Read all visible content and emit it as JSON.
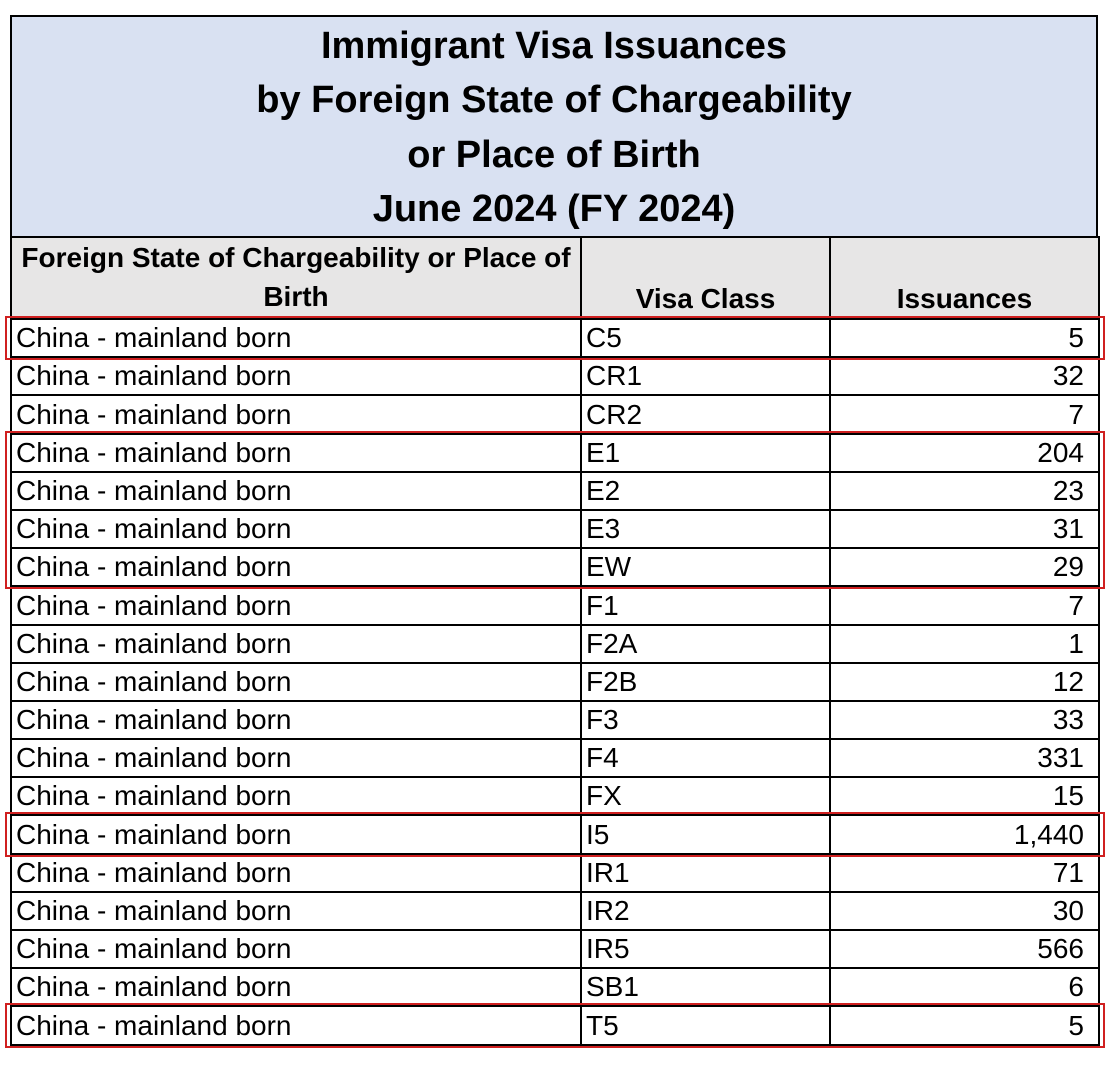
{
  "title_lines": [
    "Immigrant Visa Issuances",
    "by Foreign State of Chargeability",
    "or Place of Birth",
    "June 2024 (FY 2024)"
  ],
  "columns": {
    "state": "Foreign State of Chargeability or Place of Birth",
    "visa_class": "Visa Class",
    "issuances": "Issuances"
  },
  "rows": [
    {
      "state": "China - mainland born",
      "visa_class": "C5",
      "issuances": "5",
      "highlighted": true
    },
    {
      "state": "China - mainland born",
      "visa_class": "CR1",
      "issuances": "32",
      "highlighted": false
    },
    {
      "state": "China - mainland born",
      "visa_class": "CR2",
      "issuances": "7",
      "highlighted": false
    },
    {
      "state": "China - mainland born",
      "visa_class": "E1",
      "issuances": "204",
      "highlighted": true
    },
    {
      "state": "China - mainland born",
      "visa_class": "E2",
      "issuances": "23",
      "highlighted": true
    },
    {
      "state": "China - mainland born",
      "visa_class": "E3",
      "issuances": "31",
      "highlighted": true
    },
    {
      "state": "China - mainland born",
      "visa_class": "EW",
      "issuances": "29",
      "highlighted": true
    },
    {
      "state": "China - mainland born",
      "visa_class": "F1",
      "issuances": "7",
      "highlighted": false
    },
    {
      "state": "China - mainland born",
      "visa_class": "F2A",
      "issuances": "1",
      "highlighted": false
    },
    {
      "state": "China - mainland born",
      "visa_class": "F2B",
      "issuances": "12",
      "highlighted": false
    },
    {
      "state": "China - mainland born",
      "visa_class": "F3",
      "issuances": "33",
      "highlighted": false
    },
    {
      "state": "China - mainland born",
      "visa_class": "F4",
      "issuances": "331",
      "highlighted": false
    },
    {
      "state": "China - mainland born",
      "visa_class": "FX",
      "issuances": "15",
      "highlighted": false
    },
    {
      "state": "China - mainland born",
      "visa_class": "I5",
      "issuances": "1,440",
      "highlighted": true
    },
    {
      "state": "China - mainland born",
      "visa_class": "IR1",
      "issuances": "71",
      "highlighted": false
    },
    {
      "state": "China - mainland born",
      "visa_class": "IR2",
      "issuances": "30",
      "highlighted": false
    },
    {
      "state": "China - mainland born",
      "visa_class": "IR5",
      "issuances": "566",
      "highlighted": false
    },
    {
      "state": "China - mainland born",
      "visa_class": "SB1",
      "issuances": "6",
      "highlighted": false
    },
    {
      "state": "China - mainland born",
      "visa_class": "T5",
      "issuances": "5",
      "highlighted": true
    }
  ],
  "highlight_color": "#d02020",
  "title_background": "#d9e1f2",
  "header_background": "#e7e6e6"
}
